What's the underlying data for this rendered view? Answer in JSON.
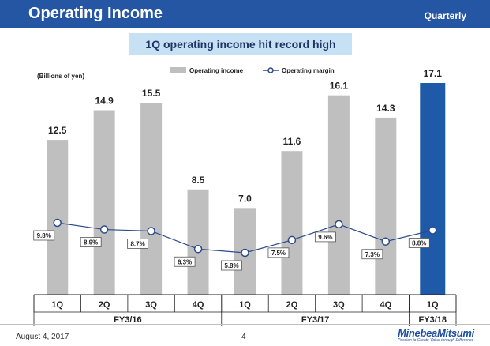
{
  "header": {
    "title": "Operating Income",
    "period": "Quarterly",
    "headline": "1Q operating income hit record high"
  },
  "footer": {
    "date": "August 4, 2017",
    "page": "4",
    "logo_name": "MinebeaMitsumi",
    "logo_tagline": "Passion to Create Value through Difference"
  },
  "colors": {
    "bar_default": "#bfbfbf",
    "bar_highlight": "#1f5aa8",
    "line": "#2b4a8c",
    "title_bar": "#2556a4"
  },
  "chart_data": {
    "type": "bar",
    "unit_label": "(Billions of yen)",
    "categories": [
      "1Q",
      "2Q",
      "3Q",
      "4Q",
      "1Q",
      "2Q",
      "3Q",
      "4Q",
      "1Q"
    ],
    "groups": [
      {
        "label": "FY3/16",
        "count": 4
      },
      {
        "label": "FY3/17",
        "count": 4
      },
      {
        "label": "FY3/18",
        "count": 1
      }
    ],
    "series": [
      {
        "name": "Operating income",
        "type": "bar",
        "values": [
          12.5,
          14.9,
          15.5,
          8.5,
          7.0,
          11.6,
          16.1,
          14.3,
          17.1
        ],
        "labels": [
          "12.5",
          "14.9",
          "15.5",
          "8.5",
          "7.0",
          "11.6",
          "16.1",
          "14.3",
          "17.1"
        ]
      },
      {
        "name": "Operating margin",
        "type": "line",
        "values": [
          9.8,
          8.9,
          8.7,
          6.3,
          5.8,
          7.5,
          9.6,
          7.3,
          8.8
        ],
        "labels": [
          "9.8%",
          "8.9%",
          "8.7%",
          "6.3%",
          "5.8%",
          "7.5%",
          "9.6%",
          "7.3%",
          "8.8%"
        ]
      }
    ],
    "highlight_index": 8,
    "legend_position": "top",
    "grid": false
  }
}
